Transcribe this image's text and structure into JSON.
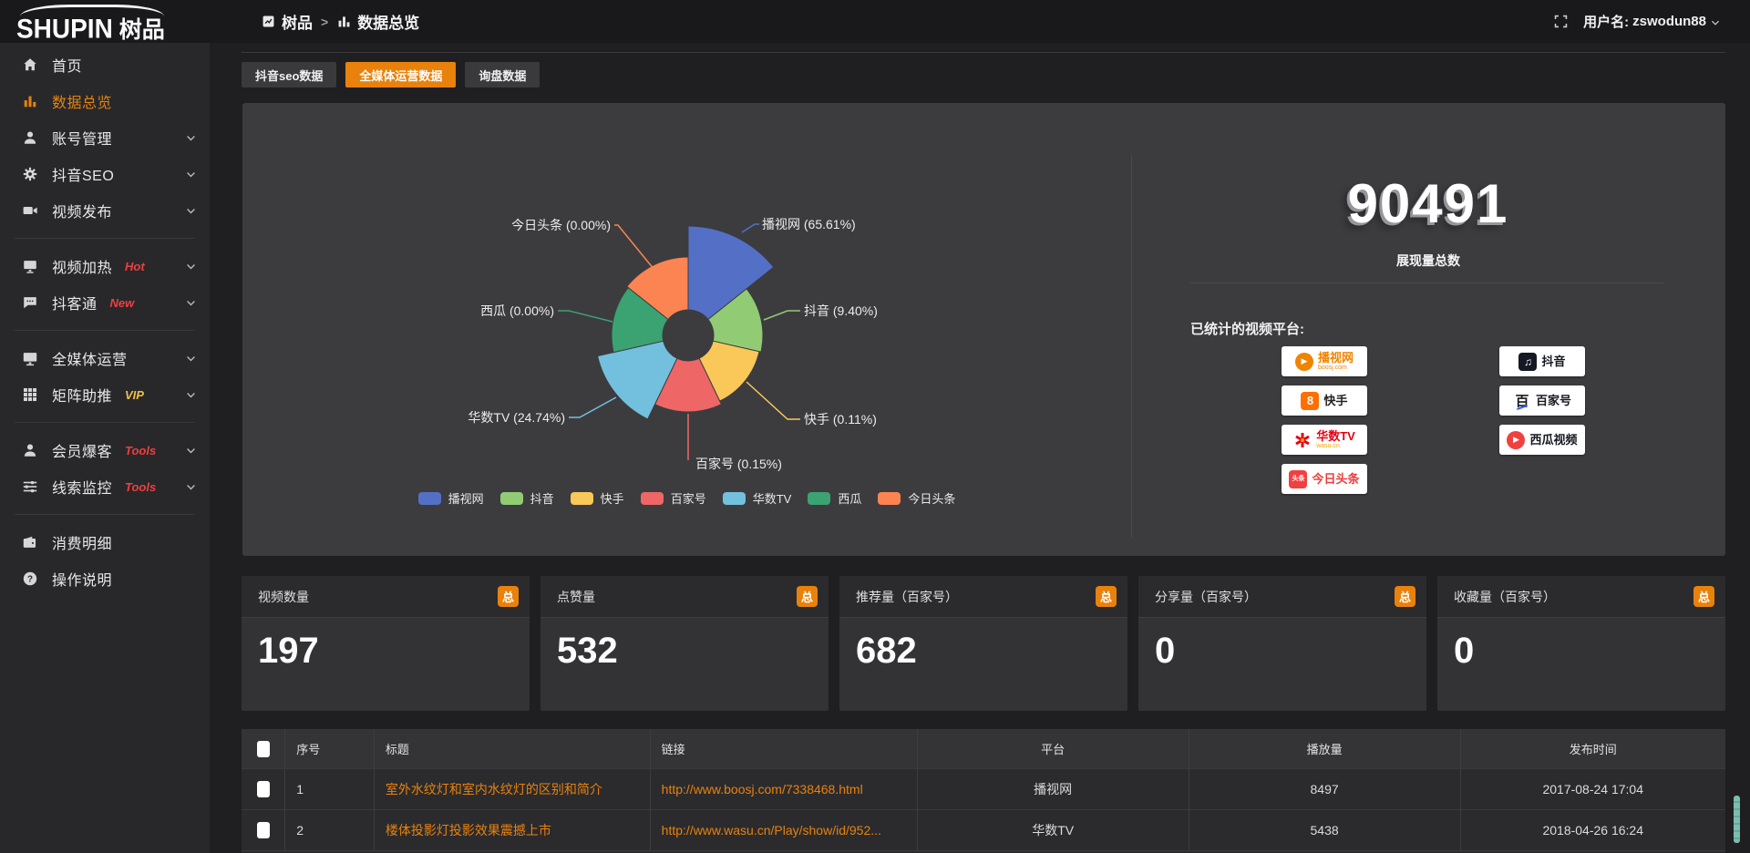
{
  "theme": {
    "accent": "#e8820c",
    "hot_red": "#f03e3e",
    "vip_gold": "#f0c040",
    "panel_bg": "#3c3c3f"
  },
  "header": {
    "logo_en": "SHUPIN",
    "logo_cn": "树品",
    "breadcrumb": [
      {
        "label": "树品"
      },
      {
        "label": "数据总览"
      }
    ],
    "breadcrumb_separator": ">",
    "user_prefix": "用户名:",
    "username": "zswodun88"
  },
  "sidebar": {
    "items": [
      {
        "icon": "home-icon",
        "label": "首页"
      },
      {
        "icon": "bar-chart-icon",
        "label": "数据总览",
        "active": true
      },
      {
        "icon": "user-icon",
        "label": "账号管理",
        "expandable": true
      },
      {
        "icon": "gear-icon",
        "label": "抖音SEO",
        "expandable": true
      },
      {
        "icon": "video-icon",
        "label": "视频发布",
        "expandable": true,
        "divider_after": true
      },
      {
        "icon": "screen-icon",
        "label": "视频加热",
        "tag": "Hot",
        "tag_style": "hot",
        "expandable": true
      },
      {
        "icon": "chat-icon",
        "label": "抖客通",
        "tag": "New",
        "tag_style": "hot",
        "expandable": true,
        "divider_after": true
      },
      {
        "icon": "monitor-icon",
        "label": "全媒体运营",
        "expandable": true
      },
      {
        "icon": "grid-icon",
        "label": "矩阵助推",
        "tag": "VIP",
        "tag_style": "vip",
        "expandable": true,
        "divider_after": true
      },
      {
        "icon": "member-icon",
        "label": "会员爆客",
        "tag": "Tools",
        "tag_style": "hot",
        "expandable": true
      },
      {
        "icon": "sliders-icon",
        "label": "线索监控",
        "tag": "Tools",
        "tag_style": "hot",
        "expandable": true,
        "divider_after": true
      },
      {
        "icon": "wallet-icon",
        "label": "消费明细"
      },
      {
        "icon": "question-icon",
        "label": "操作说明"
      }
    ]
  },
  "tabs": [
    {
      "label": "抖音seo数据",
      "active": false
    },
    {
      "label": "全媒体运营数据",
      "active": true
    },
    {
      "label": "询盘数据",
      "active": false
    }
  ],
  "chart_data": {
    "type": "pie",
    "variant": "nightingale-rose",
    "legend_position": "bottom",
    "inner_radius": 28,
    "slices": [
      {
        "name": "播视网",
        "label": "播视网 (65.61%)",
        "value_pct": 65.61,
        "color": "#5470c6",
        "radius": 120
      },
      {
        "name": "抖音",
        "label": "抖音 (9.40%)",
        "value_pct": 9.4,
        "color": "#91cc75",
        "radius": 82
      },
      {
        "name": "快手",
        "label": "快手 (0.11%)",
        "value_pct": 0.11,
        "color": "#fac858",
        "radius": 80
      },
      {
        "name": "百家号",
        "label": "百家号 (0.15%)",
        "value_pct": 0.15,
        "color": "#ee6666",
        "radius": 84
      },
      {
        "name": "华数TV",
        "label": "华数TV (24.74%)",
        "value_pct": 24.74,
        "color": "#73c0de",
        "radius": 102
      },
      {
        "name": "西瓜",
        "label": "西瓜 (0.00%)",
        "value_pct": 0.0,
        "color": "#3ba272",
        "radius": 84
      },
      {
        "name": "今日头条",
        "label": "今日头条 (0.00%)",
        "value_pct": 0.0,
        "color": "#fc8452",
        "radius": 86
      }
    ]
  },
  "summary": {
    "total_value": "90491",
    "total_label": "展现量总数",
    "platforms_label": "已统计的视频平台:",
    "platforms_col1": [
      {
        "name": "播视网",
        "sub": "boosj.com",
        "icon": "boosj-logo",
        "color": "#f08300"
      },
      {
        "name": "快手",
        "icon": "kuaishou-logo",
        "color": "#222222"
      },
      {
        "name": "华数TV",
        "sub": "wasu.cn",
        "icon": "wasu-logo",
        "color": "#e60012"
      },
      {
        "name": "今日头条",
        "icon": "toutiao-logo",
        "color": "#ea3d3d"
      }
    ],
    "platforms_col2": [
      {
        "name": "抖音",
        "icon": "douyin-logo",
        "color": "#16181f"
      },
      {
        "name": "百家号",
        "icon": "baijiahao-logo",
        "color": "#16181f"
      },
      {
        "name": "西瓜视频",
        "icon": "xigua-logo",
        "color": "#16181f"
      }
    ]
  },
  "stat_cards": [
    {
      "title": "视频数量",
      "badge": "总",
      "value": "197"
    },
    {
      "title": "点赞量",
      "badge": "总",
      "value": "532"
    },
    {
      "title": "推荐量（百家号）",
      "badge": "总",
      "value": "682"
    },
    {
      "title": "分享量（百家号）",
      "badge": "总",
      "value": "0"
    },
    {
      "title": "收藏量（百家号）",
      "badge": "总",
      "value": "0"
    }
  ],
  "table": {
    "headers": [
      "序号",
      "标题",
      "链接",
      "平台",
      "播放量",
      "发布时间"
    ],
    "rows": [
      {
        "index": "1",
        "title": "室外水纹灯和室内水纹灯的区别和简介",
        "link": "http://www.boosj.com/7338468.html",
        "platform": "播视网",
        "plays": "8497",
        "published": "2017-08-24 17:04"
      },
      {
        "index": "2",
        "title": "楼体投影灯投影效果震撼上市",
        "link": "http://www.wasu.cn/Play/show/id/952...",
        "platform": "华数TV",
        "plays": "5438",
        "published": "2018-04-26 16:24"
      }
    ]
  }
}
